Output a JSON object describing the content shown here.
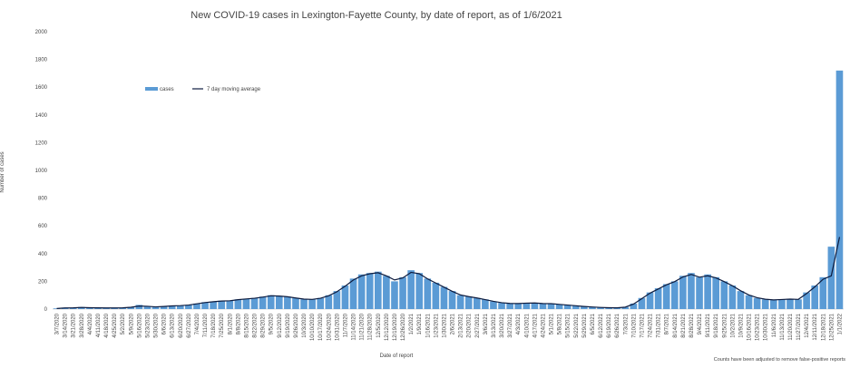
{
  "chart_data": {
    "type": "bar",
    "title": "New COVID-19 cases in Lexington-Fayette County, by date of report, as of 1/6/2021",
    "x_label": "Date of report",
    "y_label": "Number of cases",
    "annotation": "Counts have been adjusted to remove false-positive reports",
    "categories": [
      "3/7/2020",
      "3/14/2020",
      "3/21/2020",
      "3/28/2020",
      "4/4/2020",
      "4/11/2020",
      "4/18/2020",
      "4/25/2020",
      "5/2/2020",
      "5/9/2020",
      "5/16/2020",
      "5/23/2020",
      "5/30/2020",
      "6/6/2020",
      "6/13/2020",
      "6/20/2020",
      "6/27/2020",
      "7/4/2020",
      "7/11/2020",
      "7/18/2020",
      "7/25/2020",
      "8/1/2020",
      "8/8/2020",
      "8/15/2020",
      "8/22/2020",
      "8/29/2020",
      "9/5/2020",
      "9/12/2020",
      "9/19/2020",
      "9/26/2020",
      "10/3/2020",
      "10/10/2020",
      "10/17/2020",
      "10/24/2020",
      "10/31/2020",
      "11/7/2020",
      "11/14/2020",
      "11/21/2020",
      "11/28/2020",
      "12/5/2020",
      "12/12/2020",
      "12/19/2020",
      "12/26/2020",
      "1/2/2021",
      "1/9/2021",
      "1/16/2021",
      "1/23/2021",
      "1/30/2021",
      "2/6/2021",
      "2/13/2021",
      "2/20/2021",
      "2/27/2021",
      "3/6/2021",
      "3/13/2021",
      "3/20/2021",
      "3/27/2021",
      "4/3/2021",
      "4/10/2021",
      "4/17/2021",
      "4/24/2021",
      "5/1/2021",
      "5/8/2021",
      "5/15/2021",
      "5/22/2021",
      "5/29/2021",
      "6/5/2021",
      "6/12/2021",
      "6/19/2021",
      "6/26/2021",
      "7/3/2021",
      "7/10/2021",
      "7/17/2021",
      "7/24/2021",
      "7/31/2021",
      "8/7/2021",
      "8/14/2021",
      "8/21/2021",
      "8/28/2021",
      "9/4/2021",
      "9/11/2021",
      "9/18/2021",
      "9/25/2021",
      "10/2/2021",
      "10/9/2021",
      "10/16/2021",
      "10/23/2021",
      "10/30/2021",
      "11/6/2021",
      "11/13/2021",
      "11/20/2021",
      "11/27/2021",
      "12/4/2021",
      "12/11/2021",
      "12/18/2021",
      "12/25/2021",
      "1/1/2022"
    ],
    "series": [
      {
        "name": "cases",
        "color": "#5b9bd5",
        "values": [
          5,
          10,
          10,
          15,
          10,
          10,
          8,
          8,
          10,
          15,
          30,
          20,
          15,
          20,
          25,
          25,
          30,
          40,
          50,
          55,
          60,
          60,
          70,
          75,
          80,
          90,
          100,
          95,
          90,
          80,
          70,
          70,
          80,
          100,
          130,
          170,
          220,
          250,
          260,
          270,
          240,
          200,
          230,
          280,
          260,
          220,
          190,
          160,
          130,
          100,
          90,
          80,
          70,
          55,
          45,
          40,
          40,
          45,
          45,
          40,
          40,
          35,
          30,
          25,
          20,
          15,
          12,
          10,
          8,
          15,
          40,
          80,
          120,
          150,
          180,
          200,
          240,
          260,
          230,
          250,
          230,
          200,
          170,
          130,
          100,
          80,
          70,
          65,
          70,
          75,
          70,
          120,
          170,
          230,
          450,
          1720
        ]
      },
      {
        "name": "7 day moving average",
        "color": "#0d1b3e",
        "type": "line",
        "values": [
          4,
          8,
          9,
          12,
          10,
          9,
          8,
          8,
          9,
          13,
          22,
          20,
          16,
          19,
          23,
          25,
          29,
          38,
          47,
          53,
          58,
          60,
          68,
          73,
          78,
          86,
          96,
          94,
          89,
          80,
          72,
          70,
          78,
          96,
          125,
          165,
          210,
          240,
          255,
          262,
          240,
          210,
          225,
          265,
          255,
          218,
          188,
          158,
          128,
          102,
          90,
          80,
          68,
          56,
          46,
          41,
          40,
          43,
          44,
          40,
          39,
          34,
          29,
          24,
          19,
          15,
          12,
          10,
          9,
          14,
          36,
          75,
          115,
          145,
          175,
          198,
          232,
          250,
          230,
          240,
          225,
          198,
          168,
          132,
          102,
          82,
          71,
          66,
          69,
          72,
          70,
          112,
          160,
          215,
          240,
          520
        ]
      }
    ],
    "ylim": [
      0,
      2000
    ],
    "yticks": [
      0,
      200,
      400,
      600,
      800,
      1000,
      1200,
      1400,
      1600,
      1800,
      2000
    ],
    "legend": "upper left"
  }
}
